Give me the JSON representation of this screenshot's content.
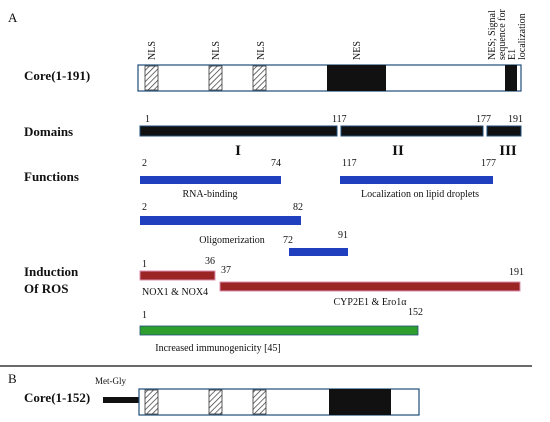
{
  "panel_a": {
    "label": "A",
    "core_label": "Core(1-191)",
    "motif_labels": {
      "nls1": "NLS",
      "nls2": "NLS",
      "nls3": "NLS",
      "nes": "NES",
      "signal_line1": "NES; Signal",
      "signal_line2": "sequence for",
      "signal_line3": "E1",
      "signal_line4": "localization"
    },
    "domains": {
      "row_label": "Domains",
      "start_1": "1",
      "start_2": "117",
      "start_3": "177",
      "end": "191",
      "domain_1": "I",
      "domain_2": "II",
      "domain_3": "III"
    },
    "functions": {
      "row_label": "Functions",
      "rna_start": "2",
      "rna_end": "74",
      "rna_label": "RNA-binding",
      "lipid_start": "117",
      "lipid_end": "177",
      "lipid_label": "Localization on lipid droplets",
      "olig_start": "2",
      "olig_end": "82",
      "olig_label": "Oligomerization",
      "olig2_start": "72",
      "olig2_end": "91"
    },
    "ros": {
      "row_label_1": "Induction",
      "row_label_2": "Of ROS",
      "nox_start": "1",
      "nox_end": "36",
      "nox_label": "NOX1 & NOX4",
      "cyp_start": "37",
      "cyp_end": "191",
      "cyp_label": "CYP2E1 & Ero1α",
      "immuno_start": "1",
      "immuno_end": "152",
      "immuno_label": "Increased immunogenicity [45]"
    }
  },
  "panel_b": {
    "label": "B",
    "core_label": "Core(1-152)",
    "metgly_label": "Met-Gly"
  },
  "colors": {
    "outline": "#1f4e79",
    "black_block": "#111111",
    "blue_bar": "#1f3fbf",
    "red_bar": "#9b2525",
    "green_bar": "#2e9e2e",
    "ros_outline": "#d98fb0"
  }
}
